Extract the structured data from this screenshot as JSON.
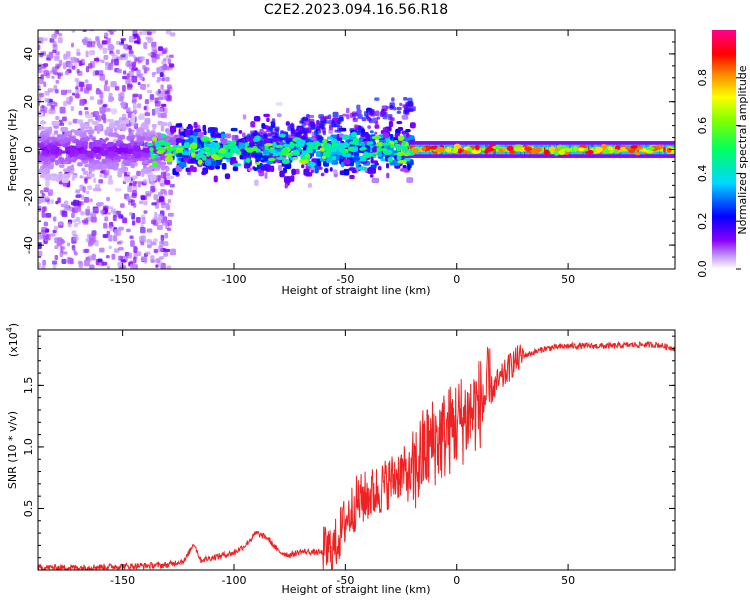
{
  "figure": {
    "title": "C2E2.2023.094.16.56.R18"
  },
  "chart_data": [
    {
      "type": "heatmap",
      "xlabel": "Height of straight line (km)",
      "ylabel": "Frequency (Hz)",
      "xlim": [
        -188,
        98
      ],
      "ylim": [
        -50,
        50
      ],
      "xticks": [
        -150,
        -100,
        -50,
        0,
        50
      ],
      "yticks": [
        -40,
        -20,
        0,
        20,
        40
      ],
      "grid": false,
      "description_of_pattern": [
        {
          "x_range": [
            -188,
            -128
          ],
          "freq_range": [
            -50,
            50
          ],
          "amplitude": 0.15,
          "note": "scattered noise"
        },
        {
          "x_range": [
            -128,
            -20
          ],
          "freq_center": 0,
          "freq_spread": 8,
          "amplitude": 0.45
        },
        {
          "x_range": [
            -20,
            98
          ],
          "freq_center": 0,
          "freq_spread": 3,
          "amplitude": 0.75
        }
      ],
      "colorbar": {
        "label": "Normalized spectral amplitude",
        "range": [
          0,
          1
        ],
        "ticks": [
          0.0,
          0.2,
          0.4,
          0.6,
          0.8
        ],
        "colormap": [
          "#ffffff",
          "#6a00ff",
          "#0000ff",
          "#00ffff",
          "#00ff00",
          "#ffff00",
          "#ff0000",
          "#ff00aa"
        ]
      }
    },
    {
      "type": "line",
      "xlabel": "Height of straight line (km)",
      "ylabel": "SNR (10 * v/v)",
      "y_multiplier": "(x10",
      "y_multiplier_exp": "4",
      "y_multiplier_close": ")",
      "xlim": [
        -188,
        98
      ],
      "ylim": [
        0,
        1.95
      ],
      "xticks": [
        -150,
        -100,
        -50,
        0,
        50
      ],
      "yticks": [
        0.5,
        1.0,
        1.5
      ],
      "ytick_labels": [
        "0.5",
        "1.0",
        "1.5"
      ],
      "grid": false,
      "series": [
        {
          "color": "#ee2222",
          "x": [
            -188,
            -170,
            -150,
            -130,
            -122,
            -118,
            -115,
            -110,
            -100,
            -95,
            -90,
            -85,
            -80,
            -75,
            -70,
            -60,
            -55,
            -50,
            -45,
            -40,
            -35,
            -30,
            -25,
            -20,
            -15,
            -10,
            -5,
            0,
            5,
            10,
            15,
            20,
            25,
            30,
            40,
            50,
            60,
            70,
            80,
            90,
            98
          ],
          "y": [
            0.02,
            0.02,
            0.03,
            0.04,
            0.08,
            0.22,
            0.08,
            0.1,
            0.14,
            0.2,
            0.3,
            0.26,
            0.15,
            0.12,
            0.15,
            0.14,
            0.18,
            0.4,
            0.55,
            0.6,
            0.65,
            0.72,
            0.8,
            0.75,
            0.95,
            1.05,
            1.1,
            1.2,
            1.25,
            1.35,
            1.45,
            1.55,
            1.68,
            1.74,
            1.8,
            1.82,
            1.82,
            1.82,
            1.83,
            1.83,
            1.8
          ]
        }
      ]
    }
  ]
}
